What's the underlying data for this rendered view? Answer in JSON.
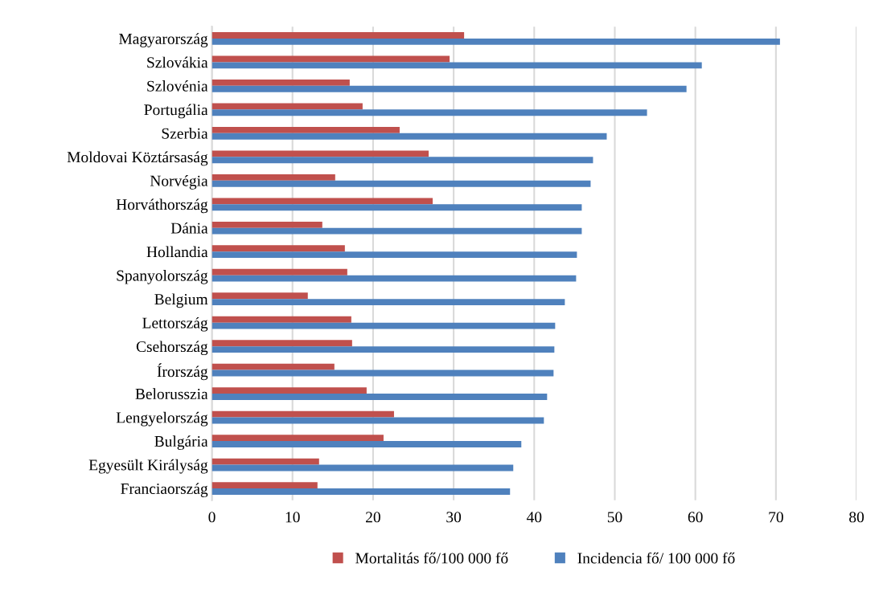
{
  "chart_data": {
    "type": "bar",
    "orientation": "horizontal",
    "categories": [
      "Magyarország",
      "Szlovákia",
      "Szlovénia",
      "Portugália",
      "Szerbia",
      "Moldovai Köztársaság",
      "Norvégia",
      "Horváthország",
      "Dánia",
      "Hollandia",
      "Spanyolország",
      "Belgium",
      "Lettország",
      "Csehország",
      "Írország",
      "Belorusszia",
      "Lengyelország",
      "Bulgária",
      "Egyesült Királyság",
      "Franciaország"
    ],
    "series": [
      {
        "name": "Mortalitás fő/100 000 fő",
        "color": "#c0504d",
        "values": [
          31.3,
          29.5,
          17.1,
          18.7,
          23.3,
          26.9,
          15.3,
          27.4,
          13.7,
          16.5,
          16.8,
          11.9,
          17.3,
          17.4,
          15.2,
          19.2,
          22.6,
          21.3,
          13.3,
          13.1
        ]
      },
      {
        "name": "Incidencia fő/ 100 000 fő",
        "color": "#4f81bd",
        "values": [
          70.5,
          60.8,
          58.9,
          54.0,
          49.0,
          47.3,
          47.0,
          45.9,
          45.9,
          45.3,
          45.2,
          43.8,
          42.6,
          42.5,
          42.4,
          41.6,
          41.2,
          38.4,
          37.4,
          37.0
        ]
      }
    ],
    "xlim": [
      0,
      80
    ],
    "xticks": [
      0,
      10,
      20,
      30,
      40,
      50,
      60,
      70,
      80
    ],
    "grid": "x",
    "legend": "bottom"
  }
}
